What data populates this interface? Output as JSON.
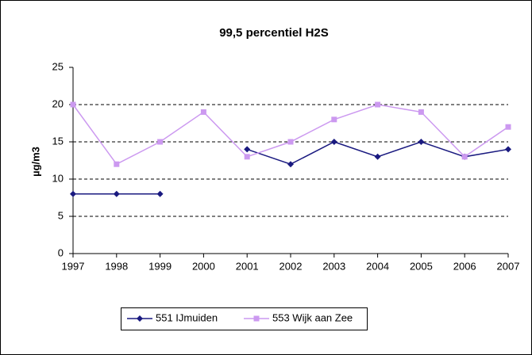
{
  "chart_data": {
    "type": "line",
    "title": "99,5 percentiel H2S",
    "y_label": "µg/m3",
    "categories": [
      "1997",
      "1998",
      "1999",
      "2000",
      "2001",
      "2002",
      "2003",
      "2004",
      "2005",
      "2006",
      "2007"
    ],
    "series": [
      {
        "name": "551 IJmuiden",
        "color": "#1a1a80",
        "marker": "diamond",
        "values": [
          8,
          8,
          8,
          null,
          14,
          12,
          15,
          13,
          15,
          13,
          14
        ]
      },
      {
        "name": "553 Wijk aan Zee",
        "color": "#cc99f0",
        "marker": "square",
        "values": [
          20,
          12,
          15,
          19,
          13,
          15,
          18,
          20,
          19,
          13,
          17
        ]
      }
    ],
    "ylim": [
      0,
      25
    ],
    "yticks": [
      0,
      5,
      10,
      15,
      20,
      25
    ],
    "grid": true,
    "legend": "bottom"
  }
}
